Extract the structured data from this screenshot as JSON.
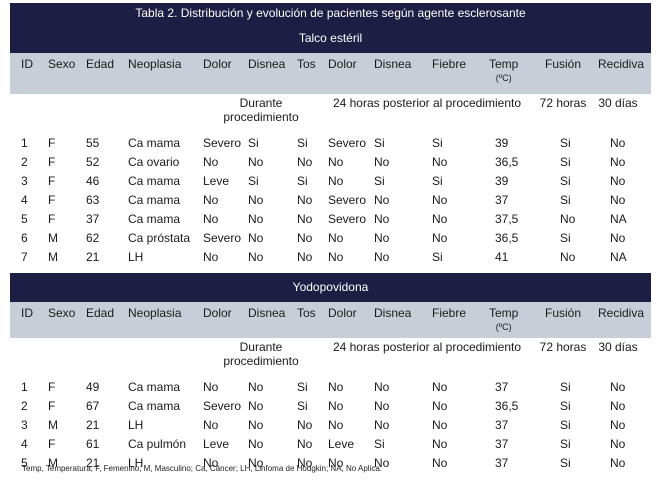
{
  "table_title": "Tabla 2. Distribución y evolución de pacientes según agente esclerosante",
  "columns": [
    "ID",
    "Sexo",
    "Edad",
    "Neoplasia",
    "Dolor",
    "Disnea",
    "Tos",
    "Dolor",
    "Disnea",
    "Fiebre",
    "Temp",
    "Fusión",
    "Recidiva"
  ],
  "temp_unit": "(ºC)",
  "periods": {
    "during": "Durante procedimiento",
    "after24": "24 horas posterior al procedimiento",
    "h72": "72 horas",
    "d30": "30 días"
  },
  "groups": [
    {
      "name": "Talco estéril",
      "rows": [
        [
          "1",
          "F",
          "55",
          "Ca mama",
          "Severo",
          "Si",
          "Si",
          "Severo",
          "Si",
          "Si",
          "39",
          "Si",
          "No"
        ],
        [
          "2",
          "F",
          "52",
          "Ca ovario",
          "No",
          "No",
          "No",
          "No",
          "No",
          "No",
          "36,5",
          "Si",
          "No"
        ],
        [
          "3",
          "F",
          "46",
          "Ca mama",
          "Leve",
          "Si",
          "Si",
          "No",
          "Si",
          "Si",
          "39",
          "Si",
          "No"
        ],
        [
          "4",
          "F",
          "63",
          "Ca mama",
          "No",
          "No",
          "No",
          "Severo",
          "No",
          "No",
          "37",
          "Si",
          "No"
        ],
        [
          "5",
          "F",
          "37",
          "Ca mama",
          "No",
          "No",
          "No",
          "Severo",
          "No",
          "No",
          "37,5",
          "No",
          "NA"
        ],
        [
          "6",
          "M",
          "62",
          "Ca próstata",
          "Severo",
          "No",
          "No",
          "No",
          "No",
          "No",
          "36,5",
          "Si",
          "No"
        ],
        [
          "7",
          "M",
          "21",
          "LH",
          "No",
          "No",
          "No",
          "No",
          "No",
          "Si",
          "41",
          "No",
          "NA"
        ]
      ]
    },
    {
      "name": "Yodopovidona",
      "rows": [
        [
          "1",
          "F",
          "49",
          "Ca mama",
          "No",
          "No",
          "Si",
          "No",
          "No",
          "No",
          "37",
          "Si",
          "No"
        ],
        [
          "2",
          "F",
          "67",
          "Ca mama",
          "Severo",
          "No",
          "Si",
          "No",
          "No",
          "No",
          "36,5",
          "Si",
          "No"
        ],
        [
          "3",
          "M",
          "21",
          "LH",
          "No",
          "No",
          "No",
          "No",
          "No",
          "No",
          "37",
          "Si",
          "No"
        ],
        [
          "4",
          "F",
          "61",
          "Ca pulmón",
          "Leve",
          "No",
          "No",
          "Leve",
          "Si",
          "No",
          "37",
          "Si",
          "No"
        ],
        [
          "5",
          "M",
          "21",
          "LH",
          "No",
          "No",
          "No",
          "No",
          "No",
          "No",
          "37",
          "Si",
          "No"
        ]
      ]
    }
  ],
  "footnote": "Temp, Temperatura; F, Femenino; M, Masculino; Ca, Cáncer; LH, Linfoma de Hodgkin; NA, No Aplica."
}
